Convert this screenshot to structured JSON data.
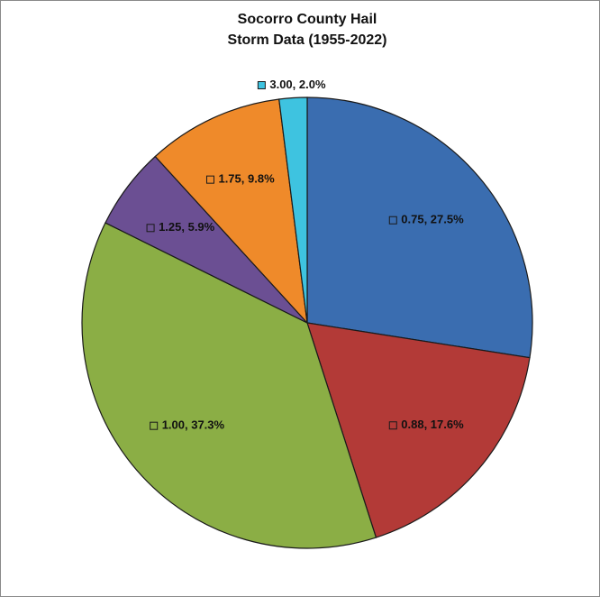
{
  "chart_data": {
    "type": "pie",
    "title": [
      "Socorro County Hail",
      "Storm Data (1955-2022)"
    ],
    "values": [
      27.5,
      17.6,
      37.3,
      5.9,
      9.8,
      2.0
    ],
    "value_labels": [
      "0.75, 27.5%",
      "0.88, 17.6%",
      "1.00, 37.3%",
      "1.25, 5.9%",
      "1.75, 9.8%",
      "3.00, 2.0%"
    ],
    "colors": [
      "#3a6db0",
      "#b33a37",
      "#8bae45",
      "#6b4f93",
      "#ef8a2a",
      "#3ec3e0"
    ]
  }
}
